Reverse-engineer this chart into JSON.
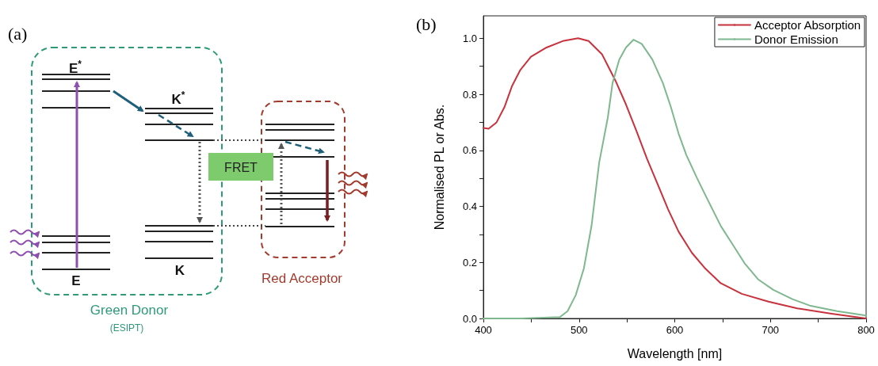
{
  "chart_data": [
    {
      "type": "other",
      "title": "(a)",
      "annotations": [
        "E$^{*}$",
        "K$^{*}$",
        "E",
        "K",
        "FRET",
        "Green Donor",
        "(ESIPT)",
        "Red Acceptor"
      ]
    },
    {
      "type": "line",
      "title": "(b)",
      "xlabel": "Wavelength [nm]",
      "ylabel": "Normalised PL or Abs.",
      "xlim": [
        400,
        800
      ],
      "ylim": [
        0,
        1.08
      ],
      "xticks": [
        400,
        {
          "value": 450,
          "label": null
        },
        500,
        {
          "value": 550,
          "label": null
        },
        600,
        {
          "value": 650,
          "label": null
        },
        700,
        {
          "value": 750,
          "label": null
        },
        800
      ],
      "yticks": [
        {
          "value": 0,
          "label": "0.0"
        },
        {
          "value": 0.1,
          "label": null
        },
        {
          "value": 0.2,
          "label": "0.2"
        },
        {
          "value": 0.3,
          "label": null
        },
        {
          "value": 0.4,
          "label": "0.4"
        },
        {
          "value": 0.5,
          "label": null
        },
        {
          "value": 0.6,
          "label": "0.6"
        },
        {
          "value": 0.7,
          "label": null
        },
        {
          "value": 0.8,
          "label": "0.8"
        },
        {
          "value": 0.9,
          "label": null
        },
        {
          "value": 1.0,
          "label": "1.0"
        }
      ],
      "grid": false,
      "legend": "top right",
      "marker": "none",
      "line_style": "solid",
      "series": [
        {
          "name": "Acceptor Absorption",
          "color": "#c8323c",
          "x": [
            400,
            405.5,
            413.8,
            422,
            430,
            438.6,
            449.7,
            466,
            483,
            499,
            510,
            524,
            538,
            549,
            560,
            571,
            582,
            593,
            604,
            618,
            632,
            648,
            670,
            698,
            728,
            764,
            800
          ],
          "values": [
            0.68,
            0.677,
            0.7,
            0.754,
            0.83,
            0.887,
            0.934,
            0.967,
            0.99,
            1.0,
            0.99,
            0.943,
            0.849,
            0.764,
            0.669,
            0.57,
            0.48,
            0.39,
            0.31,
            0.234,
            0.178,
            0.126,
            0.088,
            0.06,
            0.036,
            0.017,
            0.0
          ]
        },
        {
          "name": "Donor Emission",
          "color": "#7fb88f",
          "x": [
            400,
            440,
            480,
            488,
            496.5,
            505,
            513,
            521,
            530,
            535,
            542,
            549,
            557,
            565.5,
            576.6,
            587.6,
            596,
            604,
            612,
            623.4,
            634.5,
            648.3,
            659,
            673,
            687,
            703,
            723,
            742,
            769.7,
            797,
            800
          ],
          "values": [
            0,
            0,
            0.005,
            0.026,
            0.083,
            0.178,
            0.33,
            0.556,
            0.716,
            0.84,
            0.924,
            0.967,
            0.995,
            0.98,
            0.924,
            0.84,
            0.754,
            0.66,
            0.584,
            0.5,
            0.423,
            0.329,
            0.272,
            0.197,
            0.14,
            0.102,
            0.069,
            0.045,
            0.026,
            0.012,
            0.01
          ]
        }
      ]
    }
  ]
}
